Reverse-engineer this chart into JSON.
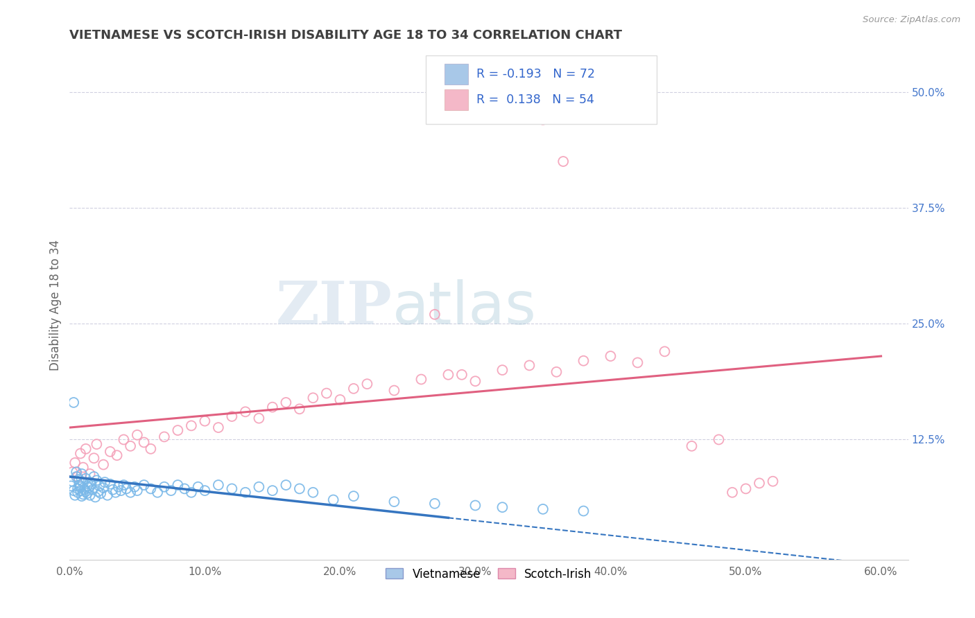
{
  "title": "VIETNAMESE VS SCOTCH-IRISH DISABILITY AGE 18 TO 34 CORRELATION CHART",
  "source_text": "Source: ZipAtlas.com",
  "ylabel": "Disability Age 18 to 34",
  "xlim": [
    0.0,
    0.62
  ],
  "ylim": [
    -0.005,
    0.545
  ],
  "xtick_labels": [
    "0.0%",
    "10.0%",
    "20.0%",
    "30.0%",
    "40.0%",
    "50.0%",
    "60.0%"
  ],
  "xtick_values": [
    0.0,
    0.1,
    0.2,
    0.3,
    0.4,
    0.5,
    0.6
  ],
  "ytick_labels": [
    "12.5%",
    "25.0%",
    "37.5%",
    "50.0%"
  ],
  "ytick_values": [
    0.125,
    0.25,
    0.375,
    0.5
  ],
  "watermark_zip": "ZIP",
  "watermark_atlas": "atlas",
  "bottom_legend": [
    "Vietnamese",
    "Scotch-Irish"
  ],
  "vietnamese_R": -0.193,
  "vietnamese_N": 72,
  "scotchirish_R": 0.138,
  "scotchirish_N": 54,
  "vietnamese_color": "#7ab8e8",
  "scotchirish_color": "#f4a0b8",
  "vietnamese_box_color": "#a8c8e8",
  "scotchirish_box_color": "#f4b8c8",
  "line_color_vietnamese": "#3575c0",
  "line_color_scotchirish": "#e06080",
  "background_color": "#ffffff",
  "grid_color": "#d0d0e0",
  "title_color": "#404040",
  "legend_text_color": "#3366cc",
  "right_axis_color": "#4477cc"
}
